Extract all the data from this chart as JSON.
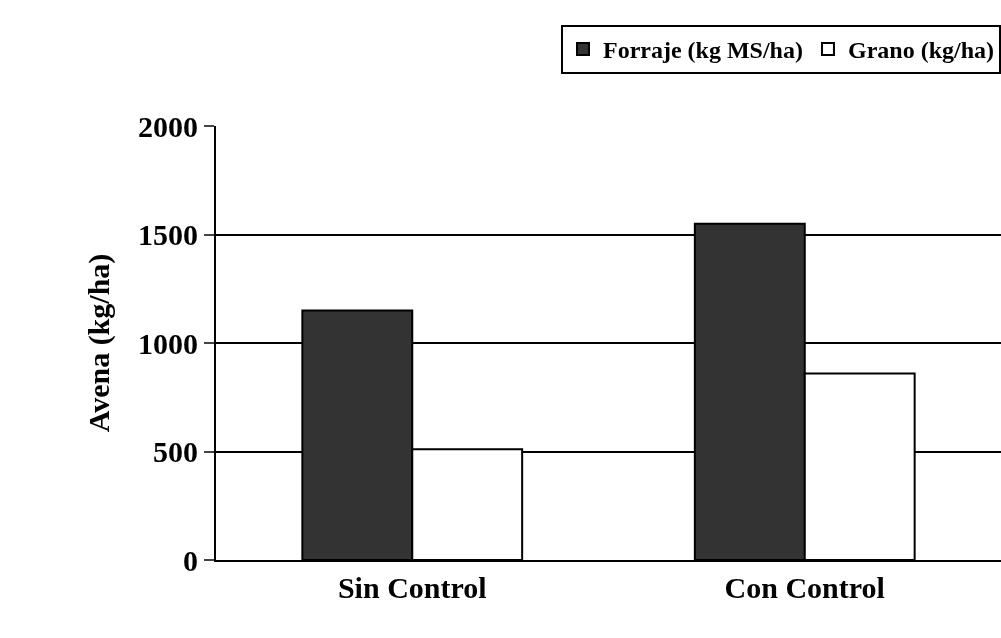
{
  "chart_data": {
    "type": "bar",
    "ylabel": "Avena (kg/ha)",
    "categories": [
      "Sin Control",
      "Con Control"
    ],
    "series": [
      {
        "name": "Forraje (kg MS/ha)",
        "color": "#333333",
        "values": [
          1150,
          1550
        ]
      },
      {
        "name": "Grano (kg/ha)",
        "color": "#ffffff",
        "values": [
          510,
          860
        ]
      }
    ],
    "ylim": [
      0,
      2000
    ],
    "yticks": [
      0,
      500,
      1000,
      1500,
      2000
    ],
    "grid": "y",
    "legend": "top right"
  }
}
